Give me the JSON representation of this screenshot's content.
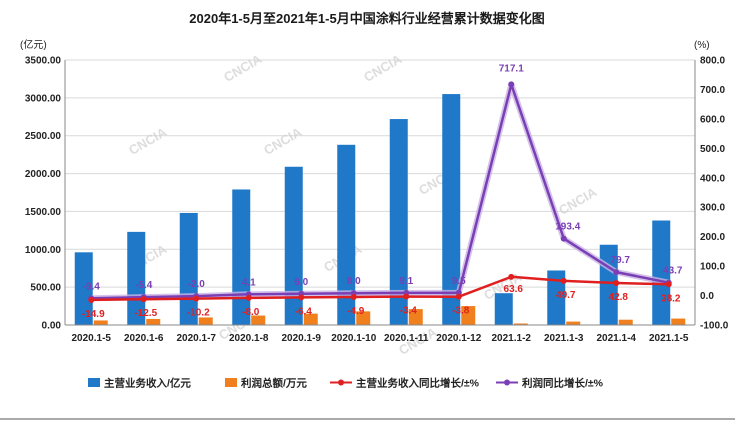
{
  "chart_data": {
    "type": "bar",
    "title": "2020年1-5月至2021年1-5月中国涂料行业经营累计数据变化图",
    "left_unit": "(亿元)",
    "right_unit": "(%)",
    "watermark": "CNCIA",
    "categories": [
      "2020.1-5",
      "2020.1-6",
      "2020.1-7",
      "2020.1-8",
      "2020.1-9",
      "2020.1-10",
      "2020.1-11",
      "2020.1-12",
      "2021.1-2",
      "2021.1-3",
      "2021.1-4",
      "2021.1-5"
    ],
    "left_axis": {
      "min": 0,
      "max": 3500,
      "step": 500,
      "ticks": [
        "0.00",
        "500.00",
        "1000.00",
        "1500.00",
        "2000.00",
        "2500.00",
        "3000.00",
        "3500.00"
      ]
    },
    "right_axis": {
      "min": -100,
      "max": 800,
      "step": 100,
      "ticks": [
        "-100.0",
        "0.0",
        "100.0",
        "200.0",
        "300.0",
        "400.0",
        "500.0",
        "600.0",
        "700.0",
        "800.0"
      ]
    },
    "bar_series": [
      {
        "name": "主营业务收入/亿元",
        "color": "#1f78c8",
        "values": [
          960,
          1230,
          1480,
          1790,
          2090,
          2380,
          2720,
          3050,
          420,
          720,
          1060,
          1380
        ]
      },
      {
        "name": "利润总额/万元",
        "color": "#f07f1e",
        "values": [
          60,
          80,
          100,
          125,
          150,
          180,
          210,
          250,
          20,
          45,
          70,
          85
        ]
      }
    ],
    "line_series": [
      {
        "name": "主营业务收入同比增长/±%",
        "color": "#e02020",
        "values": [
          -14.9,
          -12.5,
          -10.2,
          -8.0,
          -6.4,
          -4.9,
          -3.4,
          -3.8,
          63.6,
          49.7,
          42.8,
          38.2
        ],
        "labels": [
          "-14.9",
          "-12.5",
          "-10.2",
          "-8.0",
          "-6.4",
          "-4.9",
          "-3.4",
          "-3.8",
          "63.6",
          "49.7",
          "42.8",
          "38.2"
        ]
      },
      {
        "name": "利润同比增长/±%",
        "color": "#7b3fb5",
        "values": [
          -9.4,
          -5.4,
          -2.0,
          4.1,
          6.0,
          8.0,
          9.1,
          9.5,
          717.1,
          193.4,
          79.7,
          43.7
        ],
        "labels": [
          "-9.4",
          "-5.4",
          "-2.0",
          "4.1",
          "6.0",
          "8.0",
          "9.1",
          "9.5",
          "717.1",
          "193.4",
          "79.7",
          "43.7"
        ]
      }
    ],
    "grid": true,
    "legend_position": "bottom"
  }
}
